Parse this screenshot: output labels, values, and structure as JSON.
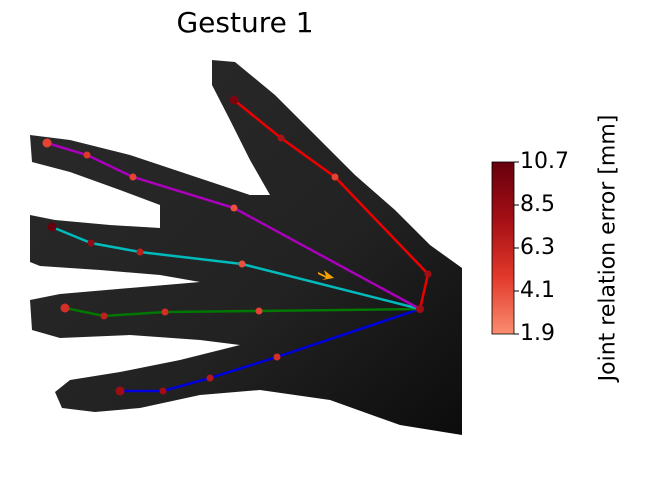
{
  "title": "Gesture 1",
  "colorbar": {
    "label": "Joint relation error [mm]",
    "ticks": [
      "10.7",
      "8.5",
      "6.3",
      "4.1",
      "1.9"
    ],
    "min": 1.9,
    "max": 10.7,
    "colors": [
      "#fa8d70",
      "#e2392b",
      "#a50f15",
      "#67000d"
    ]
  },
  "fingers": [
    {
      "name": "thumb",
      "color": "#0000dd",
      "errors": [
        5.5,
        7.0,
        8.0,
        8.2
      ]
    },
    {
      "name": "index",
      "color": "#007700",
      "errors": [
        4.5,
        5.5,
        6.5,
        5.5
      ]
    },
    {
      "name": "middle",
      "color": "#00bbbb",
      "errors": [
        4.0,
        6.5,
        8.5,
        10.7
      ]
    },
    {
      "name": "ring",
      "color": "#aa00bb",
      "errors": [
        4.0,
        4.5,
        5.0,
        4.5
      ]
    },
    {
      "name": "pinky",
      "color": "#ee0000",
      "errors": [
        8.0,
        4.5,
        7.5,
        9.8
      ]
    }
  ],
  "wrist_error": 8.0,
  "arrow_color": "#f5a000"
}
